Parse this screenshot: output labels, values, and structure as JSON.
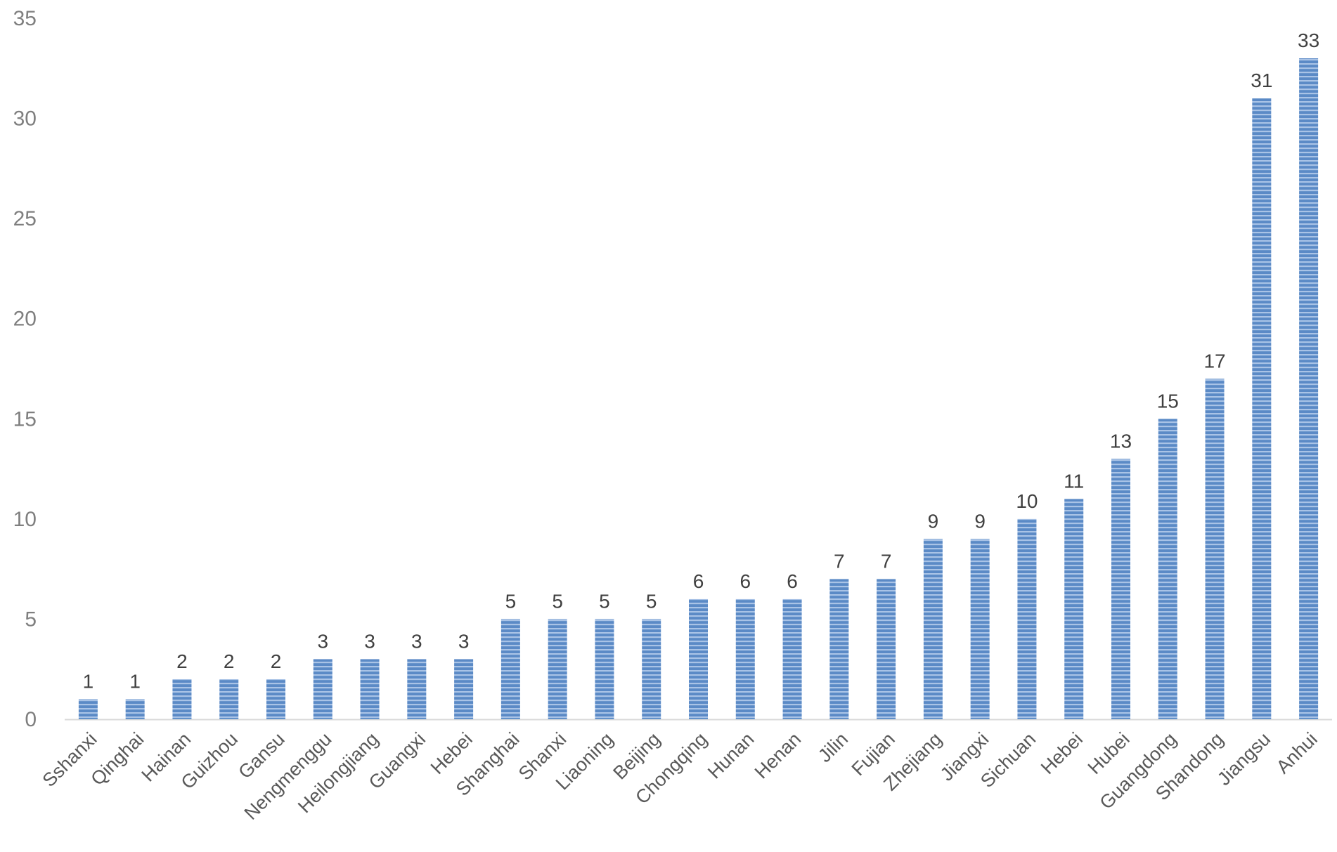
{
  "chart_data": {
    "type": "bar",
    "categories": [
      "Sshanxi",
      "Qinghai",
      "Hainan",
      "Guizhou",
      "Gansu",
      "Nengmenggu",
      "Heilongjiang",
      "Guangxi",
      "Hebei",
      "Shanghai",
      "Shanxi",
      "Liaoning",
      "Beijing",
      "Chongqing",
      "Hunan",
      "Henan",
      "Jilin",
      "Fujian",
      "Zhejiang",
      "Jiangxi",
      "Sichuan",
      "Hebei",
      "Hubei",
      "Guangdong",
      "Shandong",
      "Jiangsu",
      "Anhui"
    ],
    "values": [
      1,
      1,
      2,
      2,
      2,
      3,
      3,
      3,
      3,
      5,
      5,
      5,
      5,
      6,
      6,
      6,
      7,
      7,
      9,
      9,
      10,
      11,
      13,
      15,
      17,
      31,
      33
    ],
    "yticks": [
      "0",
      "5",
      "10",
      "15",
      "20",
      "25",
      "30",
      "35"
    ],
    "ylim": [
      0,
      35
    ],
    "grid": false,
    "data_labels": true,
    "bar_color": "#5b8ac6",
    "bar_stripe_color": "#a9c3e6",
    "axis_color": "#d9d9d9"
  }
}
